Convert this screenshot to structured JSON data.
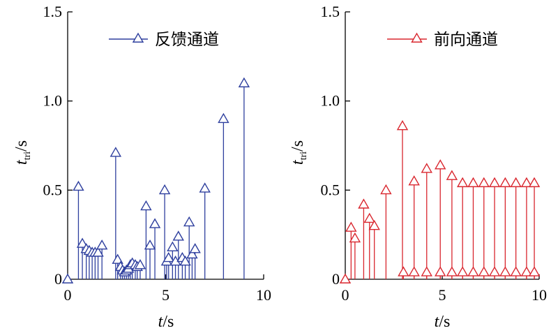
{
  "chart_data": [
    {
      "type": "stem",
      "xlim": [
        0,
        10
      ],
      "ylim": [
        0,
        1.5
      ],
      "x_ticks": [
        "0",
        "5",
        "10"
      ],
      "y_ticks": [
        "0",
        "0.5",
        "1.0",
        "1.5"
      ],
      "xlabel": {
        "var": "t",
        "unit": "/s"
      },
      "ylabel": {
        "var": "t",
        "sub": "tri",
        "unit": "/s"
      },
      "legend_placement": "top-right",
      "series": [
        {
          "name": "反馈通道",
          "color": "#2e3f9e",
          "marker": "triangle-open",
          "points": [
            [
              0.0,
              0.0
            ],
            [
              0.55,
              0.52
            ],
            [
              0.75,
              0.2
            ],
            [
              0.95,
              0.17
            ],
            [
              1.1,
              0.16
            ],
            [
              1.25,
              0.15
            ],
            [
              1.4,
              0.15
            ],
            [
              1.55,
              0.15
            ],
            [
              1.75,
              0.19
            ],
            [
              2.45,
              0.71
            ],
            [
              2.55,
              0.11
            ],
            [
              2.7,
              0.07
            ],
            [
              2.8,
              0.05
            ],
            [
              2.9,
              0.04
            ],
            [
              3.0,
              0.05
            ],
            [
              3.1,
              0.06
            ],
            [
              3.2,
              0.08
            ],
            [
              3.3,
              0.09
            ],
            [
              3.45,
              0.08
            ],
            [
              3.55,
              0.07
            ],
            [
              3.7,
              0.08
            ],
            [
              4.0,
              0.41
            ],
            [
              4.2,
              0.19
            ],
            [
              4.45,
              0.31
            ],
            [
              4.95,
              0.5
            ],
            [
              5.05,
              0.1
            ],
            [
              5.15,
              0.12
            ],
            [
              5.35,
              0.18
            ],
            [
              5.5,
              0.1
            ],
            [
              5.65,
              0.24
            ],
            [
              5.85,
              0.12
            ],
            [
              6.0,
              0.1
            ],
            [
              6.2,
              0.32
            ],
            [
              6.35,
              0.14
            ],
            [
              6.5,
              0.17
            ],
            [
              7.0,
              0.51
            ],
            [
              7.95,
              0.9
            ],
            [
              9.0,
              1.1
            ]
          ]
        }
      ]
    },
    {
      "type": "stem",
      "xlim": [
        0,
        10
      ],
      "ylim": [
        0,
        1.5
      ],
      "x_ticks": [
        "0",
        "5",
        "10"
      ],
      "y_ticks": [
        "0",
        "0.5",
        "1.0",
        "1.5"
      ],
      "xlabel": {
        "var": "t",
        "unit": "/s"
      },
      "ylabel": {
        "var": "t",
        "sub": "tri",
        "unit": "/s"
      },
      "legend_placement": "top-right",
      "series": [
        {
          "name": "前向通道",
          "color": "#d9262e",
          "marker": "triangle-open",
          "points": [
            [
              0.0,
              0.0
            ],
            [
              0.3,
              0.29
            ],
            [
              0.5,
              0.23
            ],
            [
              0.95,
              0.42
            ],
            [
              1.25,
              0.34
            ],
            [
              1.5,
              0.3
            ],
            [
              2.1,
              0.5
            ],
            [
              2.95,
              0.86
            ],
            [
              3.0,
              0.04
            ],
            [
              3.55,
              0.55
            ],
            [
              3.55,
              0.04
            ],
            [
              4.2,
              0.62
            ],
            [
              4.2,
              0.04
            ],
            [
              4.9,
              0.64
            ],
            [
              4.9,
              0.04
            ],
            [
              5.5,
              0.58
            ],
            [
              5.5,
              0.04
            ],
            [
              6.05,
              0.54
            ],
            [
              6.05,
              0.04
            ],
            [
              6.6,
              0.54
            ],
            [
              6.6,
              0.04
            ],
            [
              7.15,
              0.54
            ],
            [
              7.15,
              0.04
            ],
            [
              7.7,
              0.54
            ],
            [
              7.7,
              0.04
            ],
            [
              8.25,
              0.54
            ],
            [
              8.25,
              0.04
            ],
            [
              8.8,
              0.54
            ],
            [
              8.8,
              0.04
            ],
            [
              9.35,
              0.54
            ],
            [
              9.35,
              0.04
            ],
            [
              9.75,
              0.54
            ],
            [
              9.75,
              0.04
            ]
          ]
        }
      ]
    }
  ]
}
